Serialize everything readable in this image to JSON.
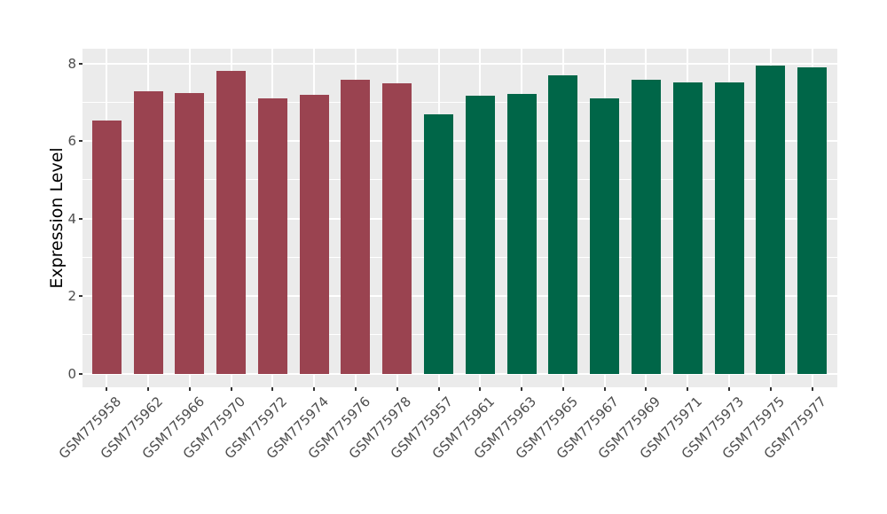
{
  "chart_data": {
    "type": "bar",
    "title": "",
    "ylabel": "Expression Level",
    "xlabel": "",
    "categories": [
      "GSM775958",
      "GSM775962",
      "GSM775966",
      "GSM775970",
      "GSM775972",
      "GSM775974",
      "GSM775976",
      "GSM775978",
      "GSM775957",
      "GSM775961",
      "GSM775963",
      "GSM775965",
      "GSM775967",
      "GSM775969",
      "GSM775971",
      "GSM775973",
      "GSM775975",
      "GSM775977"
    ],
    "values": [
      6.54,
      7.29,
      7.24,
      7.81,
      7.11,
      7.19,
      7.59,
      7.49,
      6.69,
      7.17,
      7.21,
      7.7,
      7.1,
      7.59,
      7.51,
      7.52,
      7.95,
      7.89
    ],
    "group_of": [
      0,
      0,
      0,
      0,
      0,
      0,
      0,
      0,
      1,
      1,
      1,
      1,
      1,
      1,
      1,
      1,
      1,
      1
    ],
    "group_colors": [
      "#9A4350",
      "#006648"
    ],
    "yticks": [
      0,
      2,
      4,
      6,
      8
    ],
    "minor_yticks": [
      1,
      3,
      5,
      7
    ],
    "ylim": [
      -0.35,
      8.38
    ],
    "x_tick_rotation": 45,
    "legend_position": "none",
    "grid": "major-and-minor",
    "panel_bg": "#EBEBEB",
    "grid_color": "#FFFFFF",
    "tick_color": "#333333",
    "tick_label_color": "#4D4D4D",
    "axis_title_color": "#000000"
  }
}
